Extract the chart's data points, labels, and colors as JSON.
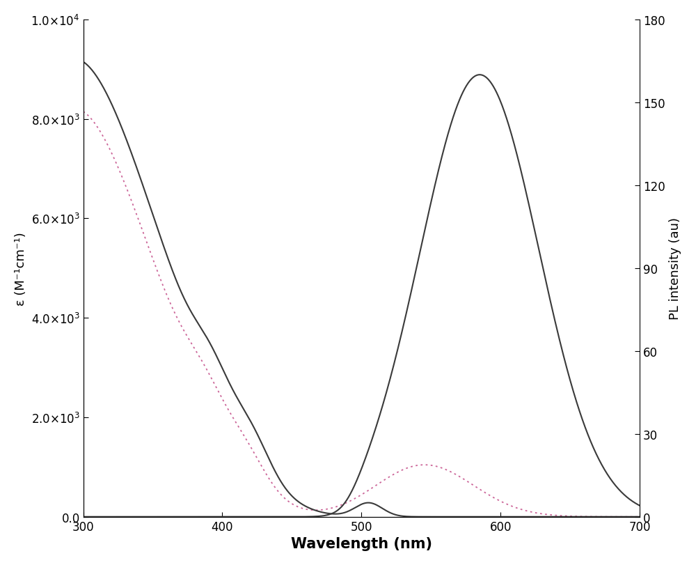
{
  "xlim": [
    300,
    700
  ],
  "ylim_left": [
    0,
    10000
  ],
  "ylim_right": [
    0,
    180
  ],
  "xlabel": "Wavelength (nm)",
  "ylabel_left": "ε (M⁻¹cm⁻¹)",
  "ylabel_right": "PL intensity (au)",
  "yticks_left": [
    0,
    2000,
    4000,
    6000,
    8000,
    10000
  ],
  "yticks_right": [
    0,
    30,
    60,
    90,
    120,
    150,
    180
  ],
  "xticks": [
    300,
    400,
    500,
    600,
    700
  ],
  "line_color": "#3a3a3a",
  "dot_color": "#cc6699",
  "background_color": "#ffffff"
}
